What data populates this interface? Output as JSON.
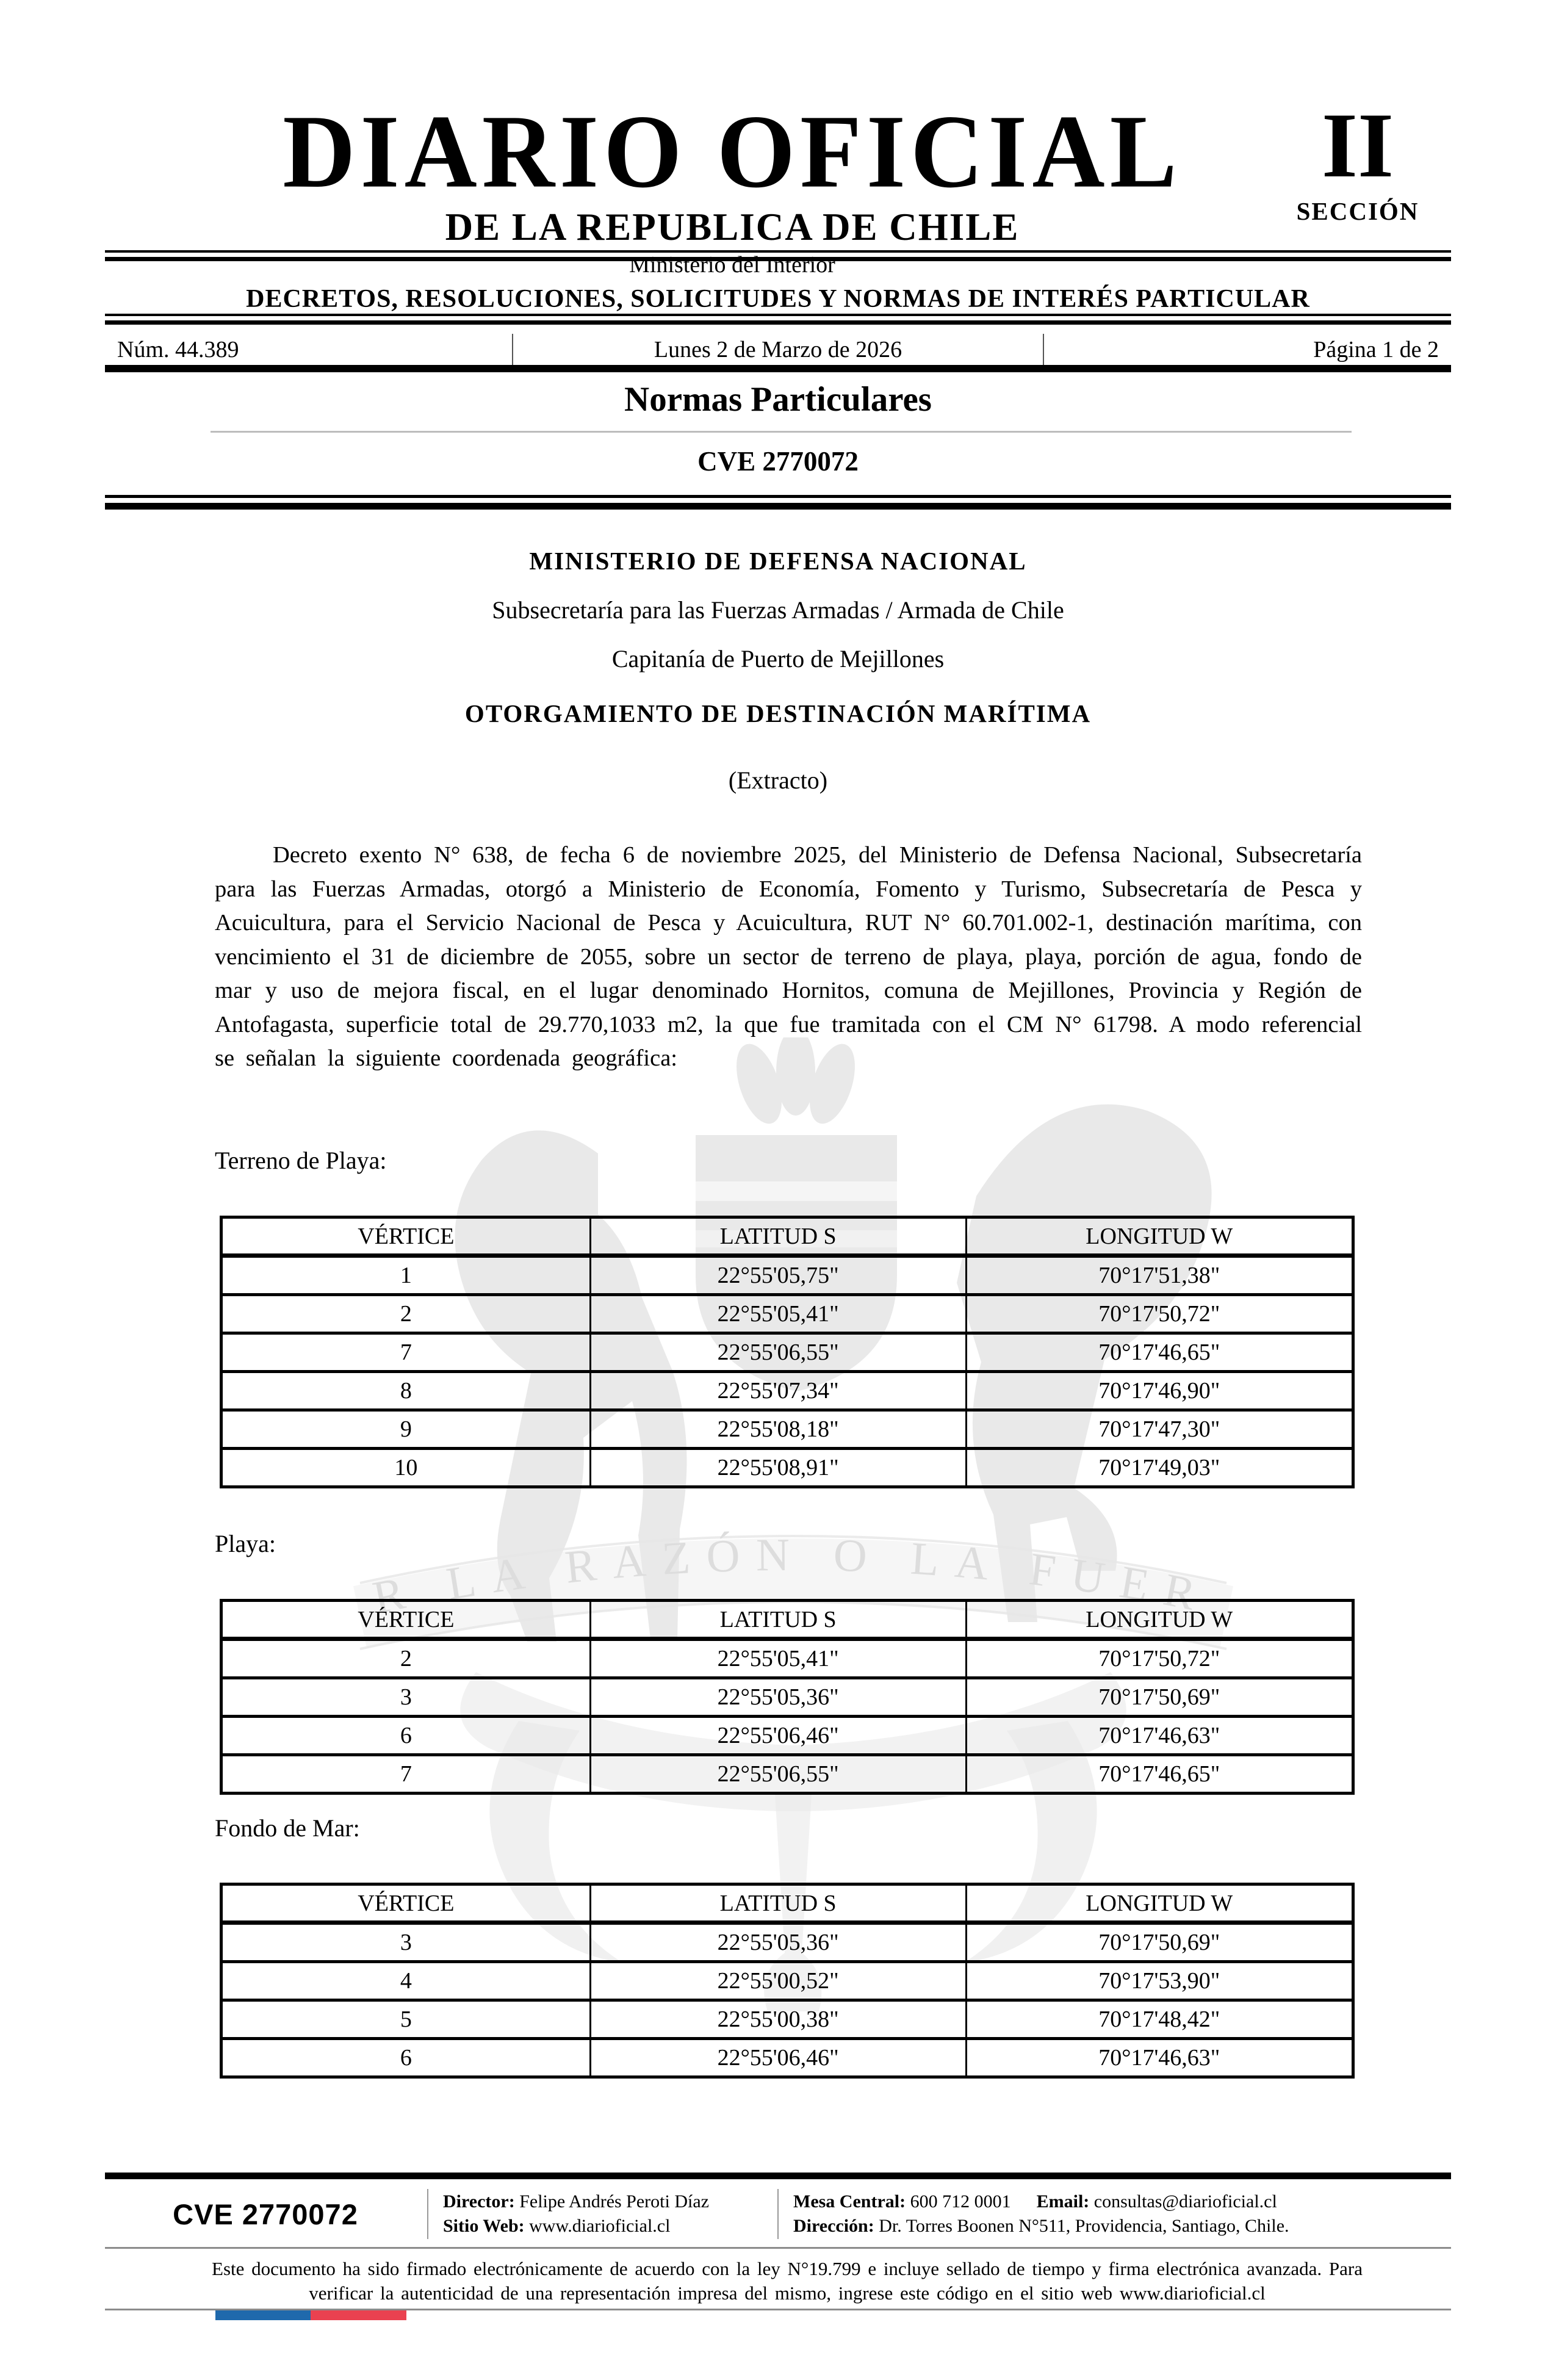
{
  "masthead": {
    "title": "DIARIO OFICIAL",
    "subtitle": "DE LA REPUBLICA DE CHILE",
    "ministry": "Ministerio del Interior",
    "section_number": "II",
    "section_label": "SECCIÓN",
    "banner": "DECRETOS, RESOLUCIONES, SOLICITUDES Y NORMAS DE INTERÉS PARTICULAR",
    "issue_number": "Núm. 44.389",
    "date": "Lunes 2 de Marzo de 2026",
    "page": "Página 1 de 2"
  },
  "section": {
    "title": "Normas Particulares",
    "cve": "CVE 2770072"
  },
  "article": {
    "ministry": "MINISTERIO DE DEFENSA NACIONAL",
    "subsecretary": "Subsecretaría para las Fuerzas Armadas / Armada de Chile",
    "port_authority": "Capitanía de Puerto de Mejillones",
    "title": "OTORGAMIENTO DE DESTINACIÓN MARÍTIMA",
    "subtitle": "(Extracto)",
    "body": "Decreto exento N° 638, de fecha 6 de noviembre 2025, del Ministerio de Defensa Nacional, Subsecretaría para las Fuerzas Armadas, otorgó a Ministerio de Economía, Fomento y Turismo, Subsecretaría de Pesca y Acuicultura, para el Servicio Nacional de Pesca y Acuicultura, RUT N° 60.701.002-1, destinación marítima, con vencimiento el 31 de diciembre de 2055, sobre un sector de terreno de playa, playa, porción de agua, fondo de mar y uso de mejora fiscal, en el lugar denominado Hornitos, comuna de Mejillones, Provincia y Región de Antofagasta, superficie total de 29.770,1033 m2, la que fue tramitada con el CM N° 61798. A modo referencial se señalan la siguiente coordenada geográfica:"
  },
  "tables": [
    {
      "label": "Terreno de Playa:",
      "headers": [
        "VÉRTICE",
        "LATITUD S",
        "LONGITUD W"
      ],
      "rows": [
        [
          "1",
          "22°55'05,75\"",
          "70°17'51,38\""
        ],
        [
          "2",
          "22°55'05,41\"",
          "70°17'50,72\""
        ],
        [
          "7",
          "22°55'06,55\"",
          "70°17'46,65\""
        ],
        [
          "8",
          "22°55'07,34\"",
          "70°17'46,90\""
        ],
        [
          "9",
          "22°55'08,18\"",
          "70°17'47,30\""
        ],
        [
          "10",
          "22°55'08,91\"",
          "70°17'49,03\""
        ]
      ]
    },
    {
      "label": "Playa:",
      "headers": [
        "VÉRTICE",
        "LATITUD S",
        "LONGITUD W"
      ],
      "rows": [
        [
          "2",
          "22°55'05,41\"",
          "70°17'50,72\""
        ],
        [
          "3",
          "22°55'05,36\"",
          "70°17'50,69\""
        ],
        [
          "6",
          "22°55'06,46\"",
          "70°17'46,63\""
        ],
        [
          "7",
          "22°55'06,55\"",
          "70°17'46,65\""
        ]
      ]
    },
    {
      "label": "Fondo de Mar:",
      "headers": [
        "VÉRTICE",
        "LATITUD S",
        "LONGITUD W"
      ],
      "rows": [
        [
          "3",
          "22°55'05,36\"",
          "70°17'50,69\""
        ],
        [
          "4",
          "22°55'00,52\"",
          "70°17'53,90\""
        ],
        [
          "5",
          "22°55'00,38\"",
          "70°17'48,42\""
        ],
        [
          "6",
          "22°55'06,46\"",
          "70°17'46,63\""
        ]
      ]
    }
  ],
  "watermark": {
    "motto": "POR LA RAZÓN O LA FUERZA"
  },
  "footer": {
    "cve": "CVE 2770072",
    "director_label": "Director:",
    "director": "Felipe Andrés Peroti Díaz",
    "website_label": "Sitio Web:",
    "website": "www.diarioficial.cl",
    "phone_label": "Mesa Central:",
    "phone": "600 712 0001",
    "email_label": "Email:",
    "email": "consultas@diarioficial.cl",
    "address_label": "Dirección:",
    "address": "Dr. Torres Boonen N°511, Providencia, Santiago, Chile.",
    "legal": "Este documento ha sido firmado electrónicamente de acuerdo con la ley N°19.799 e incluye sellado de tiempo y firma electrónica avanzada. Para verificar la autenticidad de una representación impresa del mismo, ingrese este código en el sitio web www.diarioficial.cl",
    "flag_blue": "#1f69ac",
    "flag_red": "#ea4150"
  }
}
